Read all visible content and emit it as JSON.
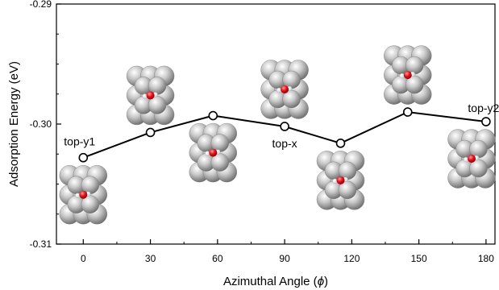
{
  "chart_data": {
    "type": "line",
    "xlabel": "Azimuthal Angle (",
    "xlabel_symbol": "ϕ",
    "xlabel_close": ")",
    "ylabel": "Adsorption Energy (eV)",
    "xlim": [
      -12,
      184
    ],
    "ylim": [
      -0.31,
      -0.29
    ],
    "x_ticks": [
      0,
      30,
      60,
      90,
      120,
      150,
      180
    ],
    "y_ticks": [
      -0.31,
      -0.3,
      -0.29
    ],
    "y_tick_labels": [
      "-0.31",
      "-0.30",
      "-0.29"
    ],
    "grid": false,
    "legend": "none",
    "series": [
      {
        "x": [
          0,
          30,
          58,
          90,
          115,
          145,
          180
        ],
        "y": [
          -0.3028,
          -0.3007,
          -0.2993,
          -0.3002,
          -0.3016,
          -0.299,
          -0.2998
        ]
      }
    ],
    "annotations": [
      {
        "text": "top-y1",
        "x": 0
      },
      {
        "text": "top-x",
        "x": 90
      },
      {
        "text": "top-y2",
        "x": 180
      }
    ],
    "colors": {
      "line": "#000000",
      "marker_fill": "#ffffff",
      "atom_gray": "#b8b8b8",
      "atom_red": "#e0141e"
    }
  }
}
